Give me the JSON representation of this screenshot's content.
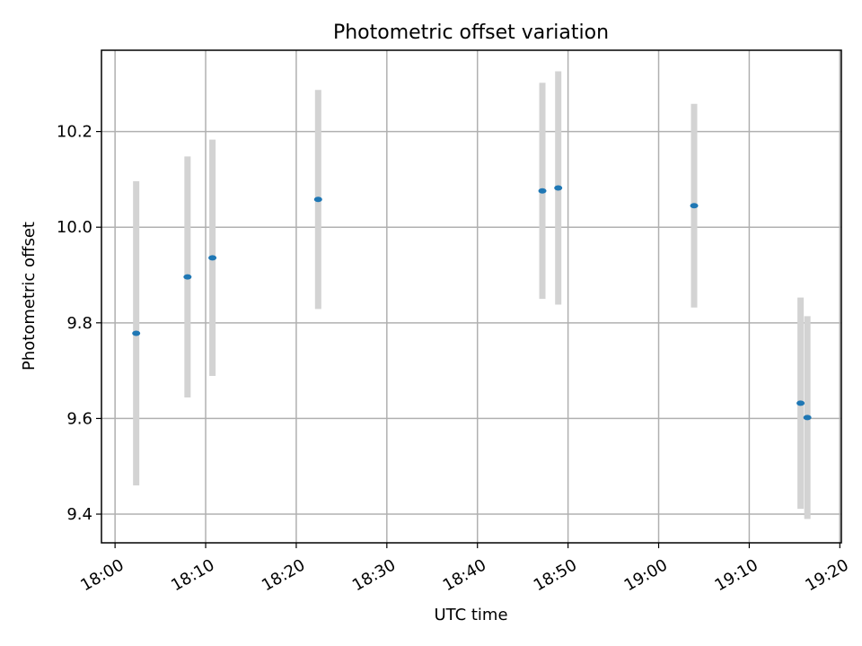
{
  "chart_data": {
    "type": "scatter",
    "title": "Photometric offset variation",
    "xlabel": "UTC time",
    "ylabel": "Photometric offset",
    "x_unit": "UTC clock time (HH:MM)",
    "xlim": [
      "17:58:30",
      "19:20:10"
    ],
    "ylim": [
      9.34,
      10.37
    ],
    "x_ticks": [
      "18:00",
      "18:10",
      "18:20",
      "18:30",
      "18:40",
      "18:50",
      "19:00",
      "19:10",
      "19:20"
    ],
    "y_ticks": [
      9.4,
      9.6,
      9.8,
      10.0,
      10.2
    ],
    "y_tick_labels": [
      "9.4",
      "9.6",
      "9.8",
      "10.0",
      "10.2"
    ],
    "grid": true,
    "series": [
      {
        "points": [
          {
            "x": "18:02:20",
            "y": 9.778,
            "yerr": 0.318
          },
          {
            "x": "18:08:00",
            "y": 9.896,
            "yerr": 0.252
          },
          {
            "x": "18:10:45",
            "y": 9.936,
            "yerr": 0.247
          },
          {
            "x": "18:22:25",
            "y": 10.058,
            "yerr": 0.229
          },
          {
            "x": "18:47:10",
            "y": 10.076,
            "yerr": 0.226
          },
          {
            "x": "18:48:55",
            "y": 10.082,
            "yerr": 0.244
          },
          {
            "x": "19:03:55",
            "y": 10.045,
            "yerr": 0.213
          },
          {
            "x": "19:15:40",
            "y": 9.632,
            "yerr": 0.221
          },
          {
            "x": "19:16:25",
            "y": 9.602,
            "yerr": 0.212
          }
        ]
      }
    ],
    "colors": {
      "marker": "#1f77b4",
      "errorbar": "#d3d3d3",
      "grid": "#b0b0b0"
    }
  }
}
